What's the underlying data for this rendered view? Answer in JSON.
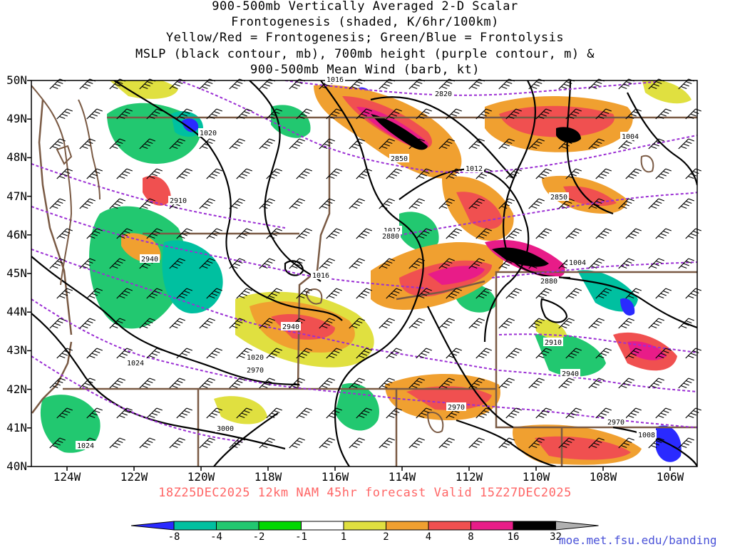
{
  "title_lines": [
    "900-500mb Vertically Averaged 2-D Scalar",
    "Frontogenesis (shaded, K/6hr/100km)",
    "Yellow/Red = Frontogenesis;  Green/Blue = Frontolysis",
    "MSLP (black contour, mb), 700mb height (purple contour, m) &",
    "900-500mb Mean Wind (barb, kt)"
  ],
  "valid_line": "18Z25DEC2025 12km NAM 45hr forecast Valid 15Z27DEC2025",
  "source_url": "moe.met.fsu.edu/banding",
  "lat_labels": [
    "50N",
    "49N",
    "48N",
    "47N",
    "46N",
    "45N",
    "44N",
    "43N",
    "42N",
    "41N",
    "40N"
  ],
  "lon_labels": [
    "124W",
    "122W",
    "120W",
    "118W",
    "116W",
    "114W",
    "112W",
    "110W",
    "108W",
    "106W"
  ],
  "colorbar": {
    "labels": [
      "-8",
      "-4",
      "-2",
      "-1",
      "1",
      "2",
      "4",
      "8",
      "16",
      "32"
    ],
    "colors": [
      "#2a2aff",
      "#00c0a0",
      "#22c870",
      "#00d800",
      "#ffffff",
      "#e0e040",
      "#f0a030",
      "#f05050",
      "#e81c88",
      "#000000",
      "#b0b0b0"
    ]
  },
  "mslp_contour_labels": [
    "1016",
    "1020",
    "1012",
    "1012",
    "1004",
    "1004",
    "1016",
    "1020",
    "1024",
    "1024",
    "1008"
  ],
  "height_contour_labels": [
    "2820",
    "2850",
    "2850",
    "2910",
    "2940",
    "2880",
    "2940",
    "2970",
    "2910",
    "2940",
    "2970",
    "3000",
    "2970",
    "2880"
  ],
  "shading_colors": {
    "frontolysis_green": "#22c870",
    "frontolysis_teal": "#00c0a0",
    "frontolysis_blue": "#2a2aff",
    "frontogenesis_yellow": "#e0e040",
    "frontogenesis_orange": "#f0a030",
    "frontogenesis_red": "#f05050",
    "frontogenesis_magenta": "#e81c88",
    "frontogenesis_black": "#000000",
    "coastline_brown": "#7a5a44",
    "height_purple": "#9b2fd4",
    "url_blue": "#4a52d8",
    "valid_line_red": "#ff6666"
  }
}
